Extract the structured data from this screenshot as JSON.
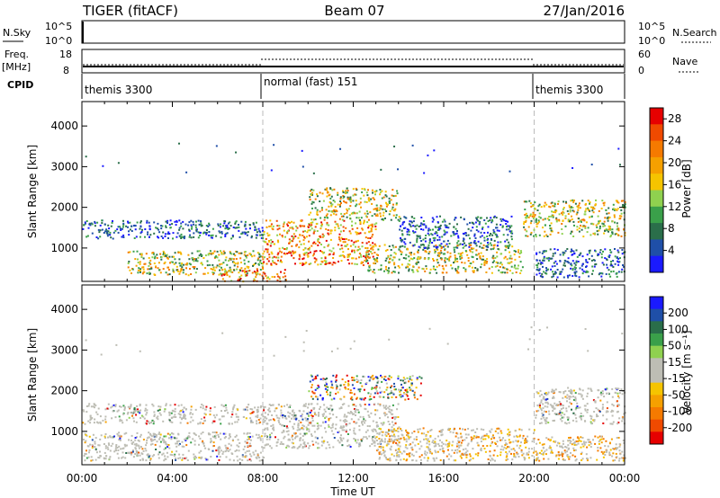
{
  "header": {
    "radar": "TIGER (fitACF)",
    "beam": "Beam 07",
    "date": "27/Jan/2016"
  },
  "top_strips": {
    "nsky_label": "N.Sky",
    "nsky_ticks": [
      "10^5",
      "10^0"
    ],
    "nsearch_label": "N.Search",
    "freq_label_1": "Freq.",
    "freq_label_2": "[MHz]",
    "freq_ticks": [
      "18",
      "8"
    ],
    "nave_ticks": [
      "60",
      "0"
    ],
    "nave_label": "Nave",
    "cpid_label": "CPID",
    "cpid_segments": [
      {
        "name": "themis 3300",
        "start_h": 0,
        "end_h": 8
      },
      {
        "name": "normal (fast) 151",
        "start_h": 8,
        "end_h": 20
      },
      {
        "name": "themis 3300",
        "start_h": 20,
        "end_h": 24
      }
    ]
  },
  "colors": {
    "power_scale": [
      "#1a1aff",
      "#1f4fa8",
      "#2a6e4a",
      "#3aa04a",
      "#8fd14f",
      "#f5c400",
      "#f5a000",
      "#f57a00",
      "#f04a00",
      "#e60000"
    ],
    "velocity_scale": [
      "#e60000",
      "#f04a00",
      "#f57a00",
      "#f5a000",
      "#f5c400",
      "#bdbdb4",
      "#bdbdb4",
      "#8fd14f",
      "#3aa04a",
      "#2a6e4a",
      "#1f4fa8",
      "#1a1aff"
    ],
    "gray_scatter": "#bdbdb4"
  },
  "chart_data": [
    {
      "type": "heatmap",
      "name": "power",
      "ylabel": "Slant Range [km]",
      "x_ticks": [
        "00:00",
        "04:00",
        "08:00",
        "12:00",
        "16:00",
        "20:00",
        "00:00"
      ],
      "xlim_hours": [
        0,
        24
      ],
      "ylim_km": [
        180,
        4600
      ],
      "y_ticks": [
        1000,
        2000,
        3000,
        4000
      ],
      "colorbar": {
        "label": "Power [dB]",
        "ticks": [
          4,
          8,
          12,
          16,
          20,
          24,
          28
        ],
        "range": [
          0,
          30
        ]
      },
      "bands": [
        {
          "t0": 0.0,
          "t1": 8.0,
          "r0": 1250,
          "r1": 1700,
          "level": "low"
        },
        {
          "t0": 2.0,
          "t1": 8.0,
          "r0": 350,
          "r1": 950,
          "level": "mid"
        },
        {
          "t0": 6.0,
          "t1": 9.0,
          "r0": 200,
          "r1": 500,
          "level": "high"
        },
        {
          "t0": 8.0,
          "t1": 13.0,
          "r0": 600,
          "r1": 1700,
          "level": "high"
        },
        {
          "t0": 10.0,
          "t1": 14.0,
          "r0": 1700,
          "r1": 2500,
          "level": "mid"
        },
        {
          "t0": 12.5,
          "t1": 19.5,
          "r0": 400,
          "r1": 1100,
          "level": "mid"
        },
        {
          "t0": 14.0,
          "t1": 19.0,
          "r0": 1000,
          "r1": 1800,
          "level": "low"
        },
        {
          "t0": 19.5,
          "t1": 24.0,
          "r0": 1300,
          "r1": 2200,
          "level": "mid"
        },
        {
          "t0": 20.0,
          "t1": 24.0,
          "r0": 300,
          "r1": 1000,
          "level": "low"
        }
      ]
    },
    {
      "type": "heatmap",
      "name": "velocity",
      "ylabel": "Slant Range [km]",
      "xlabel": "Time UT",
      "x_ticks": [
        "00:00",
        "04:00",
        "08:00",
        "12:00",
        "16:00",
        "20:00",
        "00:00"
      ],
      "xlim_hours": [
        0,
        24
      ],
      "ylim_km": [
        180,
        4600
      ],
      "y_ticks": [
        1000,
        2000,
        3000,
        4000
      ],
      "colorbar": {
        "label": "Velocity [m s⁻¹]",
        "ticks": [
          "200",
          "100",
          "50",
          "15",
          "-15",
          "-50",
          "-100",
          "-200"
        ]
      },
      "bands": [
        {
          "t0": 0.0,
          "t1": 8.0,
          "r0": 1200,
          "r1": 1700,
          "level": "zero"
        },
        {
          "t0": 0.0,
          "t1": 8.0,
          "r0": 300,
          "r1": 1000,
          "level": "zero"
        },
        {
          "t0": 8.0,
          "t1": 14.0,
          "r0": 600,
          "r1": 1700,
          "level": "zero"
        },
        {
          "t0": 10.0,
          "t1": 15.0,
          "r0": 1800,
          "r1": 2400,
          "level": "mixed"
        },
        {
          "t0": 13.0,
          "t1": 20.0,
          "r0": 300,
          "r1": 1100,
          "level": "neg"
        },
        {
          "t0": 20.0,
          "t1": 24.0,
          "r0": 1200,
          "r1": 2100,
          "level": "zero"
        },
        {
          "t0": 20.0,
          "t1": 24.0,
          "r0": 300,
          "r1": 900,
          "level": "neg"
        }
      ]
    }
  ]
}
